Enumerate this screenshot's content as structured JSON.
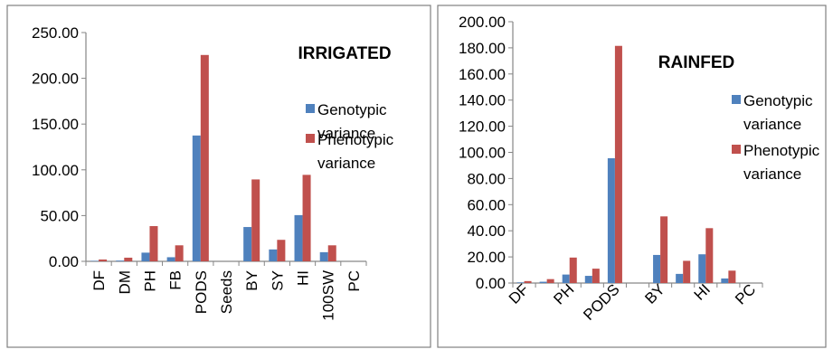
{
  "chart_data": [
    {
      "type": "bar",
      "title": "IRRIGATED",
      "categories": [
        "DF",
        "DM",
        "PH",
        "FB",
        "PODS",
        "Seeds",
        "BY",
        "SY",
        "HI",
        "100SW",
        "PC"
      ],
      "ylim": [
        0,
        250
      ],
      "yticks": [
        "0.00",
        "50.00",
        "100.00",
        "150.00",
        "200.00",
        "250.00"
      ],
      "grid": false,
      "legend_position": "right",
      "series": [
        {
          "name": "Genotypic variance",
          "color": "#4f81bd",
          "values": [
            0.5,
            0.8,
            9.5,
            4.5,
            137.5,
            0,
            37.5,
            13,
            50.5,
            10,
            0
          ]
        },
        {
          "name": "Phenotypic variance",
          "color": "#c0504d",
          "values": [
            2,
            4,
            38.5,
            17.5,
            225.5,
            0,
            89.5,
            23.5,
            94.5,
            17.5,
            0
          ]
        }
      ]
    },
    {
      "type": "bar",
      "title": "RAINFED",
      "categories": [
        "DF",
        "",
        "PH",
        "",
        "PODS",
        "",
        "BY",
        "",
        "HI",
        "",
        "PC"
      ],
      "ylim": [
        0,
        200
      ],
      "yticks": [
        "0.00",
        "20.00",
        "40.00",
        "60.00",
        "80.00",
        "100.00",
        "120.00",
        "140.00",
        "160.00",
        "180.00",
        "200.00"
      ],
      "grid": false,
      "legend_position": "right",
      "series": [
        {
          "name": "Genotypic variance",
          "color": "#4f81bd",
          "values": [
            0.5,
            1,
            6.5,
            5.5,
            95.5,
            0,
            21.5,
            7,
            22,
            3.5,
            0
          ]
        },
        {
          "name": "Phenotypic variance",
          "color": "#c0504d",
          "values": [
            1.5,
            3,
            19.5,
            11,
            181.5,
            0,
            51,
            17,
            42,
            9.5,
            0
          ]
        }
      ]
    }
  ]
}
